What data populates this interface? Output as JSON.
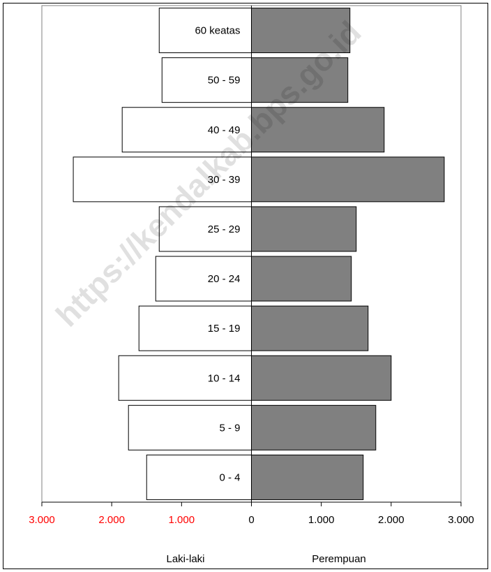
{
  "chart_data": {
    "type": "bar",
    "orientation": "horizontal",
    "categories": [
      "60  keatas",
      "50  -  59",
      "40  -  49",
      "30  -  39",
      "25  -  29",
      "20  -  24",
      "15  -  19",
      "10  -  14",
      "5  -  9",
      "0  -  4"
    ],
    "series": [
      {
        "values": [
          1320,
          1280,
          1850,
          2550,
          1320,
          1370,
          1610,
          1900,
          1760,
          1500
        ]
      },
      {
        "values": [
          1410,
          1380,
          1900,
          2760,
          1500,
          1430,
          1670,
          2000,
          1780,
          1600
        ]
      }
    ],
    "xlim": [
      -3000,
      3000
    ],
    "x_ticks": [
      {
        "value": -3000,
        "label": "3.000"
      },
      {
        "value": -2000,
        "label": "2.000"
      },
      {
        "value": -1000,
        "label": "1.000"
      },
      {
        "value": 0,
        "label": "0"
      },
      {
        "value": 1000,
        "label": "1.000"
      },
      {
        "value": 2000,
        "label": "2.000"
      },
      {
        "value": 3000,
        "label": "3.000"
      }
    ],
    "left_label": "Laki-laki",
    "right_label": "Perempuan",
    "watermark": "https://kendalkab.bps.go.id",
    "colors": {
      "male_fill": "#ffffff",
      "female_fill": "#808080",
      "negative_tick": "#ff0000",
      "positive_tick": "#000000"
    }
  }
}
